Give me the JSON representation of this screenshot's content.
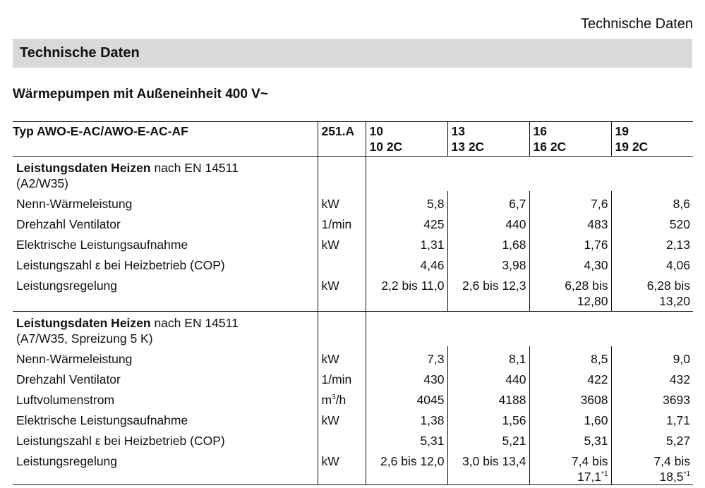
{
  "header": {
    "right_title": "Technische Daten"
  },
  "section": {
    "title": "Technische Daten"
  },
  "subtitle": "Wärmepumpen mit Außeneinheit 400 V~",
  "table": {
    "head": {
      "type": "Typ AWO-E-AC/AWO-E-AC-AF",
      "code": "251.A",
      "models": [
        {
          "line1": "10",
          "line2": "10 2C"
        },
        {
          "line1": "13",
          "line2": "13 2C"
        },
        {
          "line1": "16",
          "line2": "16 2C"
        },
        {
          "line1": "19",
          "line2": "19 2C"
        }
      ]
    },
    "sections": [
      {
        "title_bold": "Leistungsdaten Heizen",
        "title_rest": " nach EN 14511",
        "title_line2": "(A2/W35)",
        "rows": [
          {
            "label": "Nenn-Wärmeleistung",
            "unit": "kW",
            "values": [
              "5,8",
              "6,7",
              "7,6",
              "8,6"
            ]
          },
          {
            "label": "Drehzahl Ventilator",
            "unit": "1/min",
            "values": [
              "425",
              "440",
              "483",
              "520"
            ]
          },
          {
            "label": "Elektrische Leistungsaufnahme",
            "unit": "kW",
            "values": [
              "1,31",
              "1,68",
              "1,76",
              "2,13"
            ]
          },
          {
            "label": "Leistungszahl ε bei Heizbetrieb (COP)",
            "unit": "",
            "values": [
              "4,46",
              "3,98",
              "4,30",
              "4,06"
            ]
          },
          {
            "label": "Leistungsregelung",
            "unit": "kW",
            "values": [
              "2,2 bis 11,0",
              "2,6 bis 12,3",
              "6,28 bis 12,80",
              "6,28 bis 13,20"
            ]
          }
        ]
      },
      {
        "title_bold": "Leistungsdaten Heizen",
        "title_rest": " nach EN 14511",
        "title_line2": "(A7/W35, Spreizung 5 K)",
        "rows": [
          {
            "label": "Nenn-Wärmeleistung",
            "unit": "kW",
            "values": [
              "7,3",
              "8,1",
              "8,5",
              "9,0"
            ]
          },
          {
            "label": "Drehzahl Ventilator",
            "unit": "1/min",
            "values": [
              "430",
              "440",
              "422",
              "432"
            ]
          },
          {
            "label": "Luftvolumenstrom",
            "unit": "m3/h",
            "values": [
              "4045",
              "4188",
              "3608",
              "3693"
            ]
          },
          {
            "label": "Elektrische Leistungsaufnahme",
            "unit": "kW",
            "values": [
              "1,38",
              "1,56",
              "1,60",
              "1,71"
            ]
          },
          {
            "label": "Leistungszahl ε bei Heizbetrieb (COP)",
            "unit": "",
            "values": [
              "5,31",
              "5,21",
              "5,31",
              "5,27"
            ]
          },
          {
            "label": "Leistungsregelung",
            "unit": "kW",
            "values": [
              "2,6 bis 12,0",
              "3,0 bis 13,4",
              "7,4 bis 17,1*1",
              "7,4 bis 18,5*1"
            ]
          }
        ]
      }
    ]
  }
}
